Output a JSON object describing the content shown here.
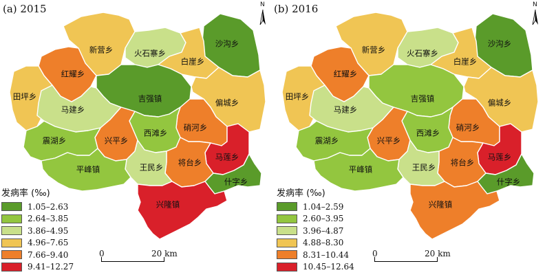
{
  "panels": [
    {
      "id": "a",
      "title": "(a) 2015",
      "north_label": "N",
      "legend_title": "发病率 (‰)",
      "legend": [
        {
          "label": "1.05–2.63",
          "color": "#5a9b2a"
        },
        {
          "label": "2.64–3.85",
          "color": "#93c63f"
        },
        {
          "label": "3.86–4.95",
          "color": "#c9e08a"
        },
        {
          "label": "4.96–7.65",
          "color": "#f0c554"
        },
        {
          "label": "7.66–9.40",
          "color": "#ee7f2a"
        },
        {
          "label": "9.41–12.27",
          "color": "#d9202a"
        }
      ],
      "scale": {
        "zero": "0",
        "end": "20 km"
      },
      "regions": [
        {
          "name": "沙沟乡",
          "class": 0
        },
        {
          "name": "新营乡",
          "class": 3
        },
        {
          "name": "火石寨乡",
          "class": 2
        },
        {
          "name": "白崖乡",
          "class": 3
        },
        {
          "name": "红耀乡",
          "class": 4
        },
        {
          "name": "田坪乡",
          "class": 3
        },
        {
          "name": "吉强镇",
          "class": 0
        },
        {
          "name": "偏城乡",
          "class": 3
        },
        {
          "name": "马建乡",
          "class": 2
        },
        {
          "name": "硝河乡",
          "class": 4
        },
        {
          "name": "西滩乡",
          "class": 1
        },
        {
          "name": "兴平乡",
          "class": 4
        },
        {
          "name": "震湖乡",
          "class": 1
        },
        {
          "name": "马莲乡",
          "class": 5
        },
        {
          "name": "将台乡",
          "class": 4
        },
        {
          "name": "王民乡",
          "class": 2
        },
        {
          "name": "平峰镇",
          "class": 1
        },
        {
          "name": "什字乡",
          "class": 0
        },
        {
          "name": "兴隆镇",
          "class": 5
        }
      ]
    },
    {
      "id": "b",
      "title": "(b) 2016",
      "north_label": "N",
      "legend_title": "发病率 (‰)",
      "legend": [
        {
          "label": "1.04–2.59",
          "color": "#5a9b2a"
        },
        {
          "label": "2.60–3.95",
          "color": "#93c63f"
        },
        {
          "label": "3.96–4.87",
          "color": "#c9e08a"
        },
        {
          "label": "4.88–8.30",
          "color": "#f0c554"
        },
        {
          "label": "8.31–10.44",
          "color": "#ee7f2a"
        },
        {
          "label": "10.45–12.64",
          "color": "#d9202a"
        }
      ],
      "scale": {
        "zero": "0",
        "end": "20 km"
      },
      "regions": [
        {
          "name": "沙沟乡",
          "class": 0
        },
        {
          "name": "新营乡",
          "class": 3
        },
        {
          "name": "火石寨乡",
          "class": 2
        },
        {
          "name": "白崖乡",
          "class": 3
        },
        {
          "name": "红耀乡",
          "class": 4
        },
        {
          "name": "田坪乡",
          "class": 3
        },
        {
          "name": "吉强镇",
          "class": 1
        },
        {
          "name": "偏城乡",
          "class": 3
        },
        {
          "name": "马建乡",
          "class": 2
        },
        {
          "name": "硝河乡",
          "class": 4
        },
        {
          "name": "西滩乡",
          "class": 1
        },
        {
          "name": "兴平乡",
          "class": 4
        },
        {
          "name": "震湖乡",
          "class": 1
        },
        {
          "name": "马莲乡",
          "class": 5
        },
        {
          "name": "将台乡",
          "class": 4
        },
        {
          "name": "王民乡",
          "class": 2
        },
        {
          "name": "平峰镇",
          "class": 1
        },
        {
          "name": "什字乡",
          "class": 0
        },
        {
          "name": "兴隆镇",
          "class": 4
        }
      ]
    }
  ]
}
